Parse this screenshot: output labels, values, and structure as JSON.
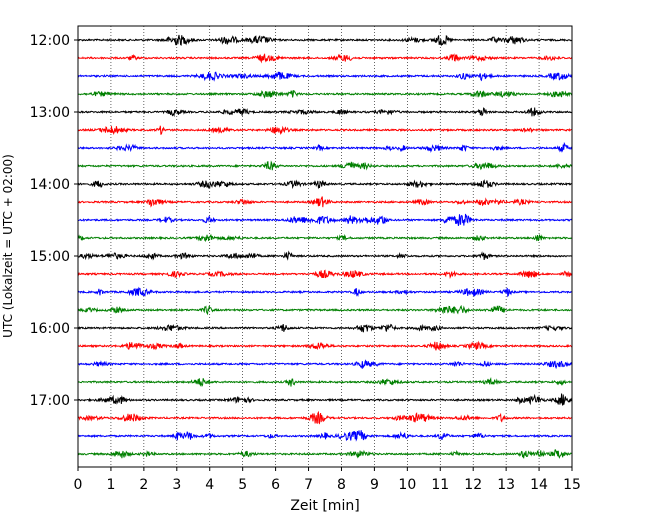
{
  "chart_data": {
    "type": "line",
    "title": "",
    "xlabel": "Zeit  [min]",
    "ylabel": "UTC (Lokalzeit = UTC + 02:00)",
    "xlim": [
      0,
      15
    ],
    "x_ticks": [
      "0",
      "1",
      "2",
      "3",
      "4",
      "5",
      "6",
      "7",
      "8",
      "9",
      "10",
      "11",
      "12",
      "13",
      "14",
      "15"
    ],
    "y_ticks": [
      "12:00",
      "13:00",
      "14:00",
      "15:00",
      "16:00",
      "17:00"
    ],
    "grid": "vertical-dotted",
    "trace_interval_minutes": 15,
    "traces": [
      {
        "start": "12:00",
        "color": "#000000"
      },
      {
        "start": "12:15",
        "color": "#ff0000"
      },
      {
        "start": "12:30",
        "color": "#0000ff"
      },
      {
        "start": "12:45",
        "color": "#008000"
      },
      {
        "start": "13:00",
        "color": "#000000"
      },
      {
        "start": "13:15",
        "color": "#ff0000"
      },
      {
        "start": "13:30",
        "color": "#0000ff"
      },
      {
        "start": "13:45",
        "color": "#008000"
      },
      {
        "start": "14:00",
        "color": "#000000"
      },
      {
        "start": "14:15",
        "color": "#ff0000"
      },
      {
        "start": "14:30",
        "color": "#0000ff"
      },
      {
        "start": "14:45",
        "color": "#008000"
      },
      {
        "start": "15:00",
        "color": "#000000"
      },
      {
        "start": "15:15",
        "color": "#ff0000"
      },
      {
        "start": "15:30",
        "color": "#0000ff"
      },
      {
        "start": "15:45",
        "color": "#008000"
      },
      {
        "start": "16:00",
        "color": "#000000"
      },
      {
        "start": "16:15",
        "color": "#ff0000"
      },
      {
        "start": "16:30",
        "color": "#0000ff"
      },
      {
        "start": "16:45",
        "color": "#008000"
      },
      {
        "start": "17:00",
        "color": "#000000"
      },
      {
        "start": "17:15",
        "color": "#ff0000"
      },
      {
        "start": "17:30",
        "color": "#0000ff"
      },
      {
        "start": "17:45",
        "color": "#008000"
      }
    ]
  }
}
